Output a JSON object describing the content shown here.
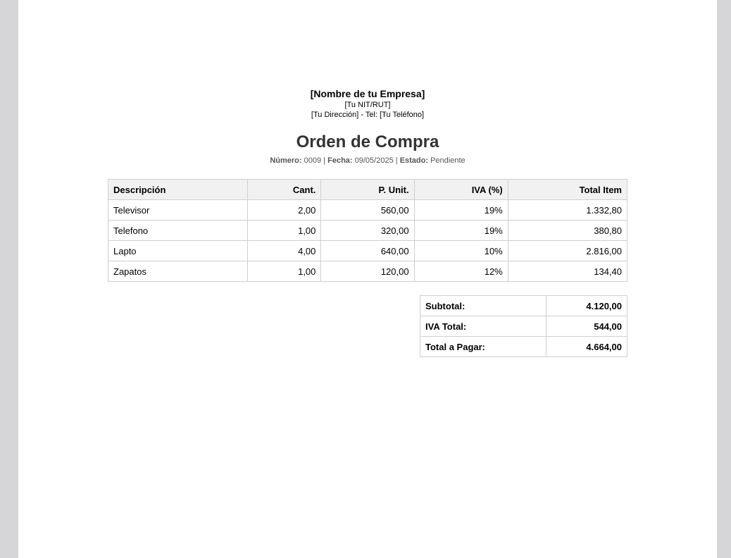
{
  "company": {
    "name": "[Nombre de tu Empresa]",
    "tax_id": "[Tu NIT/RUT]",
    "address_phone": "[Tu Dirección] - Tel: [Tu Teléfono]"
  },
  "document": {
    "title": "Orden de Compra",
    "number_label": "Número:",
    "number": "0009",
    "date_label": "Fecha:",
    "date": "09/05/2025",
    "status_label": "Estado:",
    "status": "Pendiente",
    "separator": " | "
  },
  "items": {
    "headers": [
      "Descripción",
      "Cant.",
      "P. Unit.",
      "IVA (%)",
      "Total Item"
    ],
    "rows": [
      [
        "Televisor",
        "2,00",
        "560,00",
        "19%",
        "1.332,80"
      ],
      [
        "Telefono",
        "1,00",
        "320,00",
        "19%",
        "380,80"
      ],
      [
        "Lapto",
        "4,00",
        "640,00",
        "10%",
        "2.816,00"
      ],
      [
        "Zapatos",
        "1,00",
        "120,00",
        "12%",
        "134,40"
      ]
    ]
  },
  "totals": [
    {
      "label": "Subtotal:",
      "value": "4.120,00"
    },
    {
      "label": "IVA Total:",
      "value": "544,00"
    },
    {
      "label": "Total a Pagar:",
      "value": "4.664,00"
    }
  ]
}
